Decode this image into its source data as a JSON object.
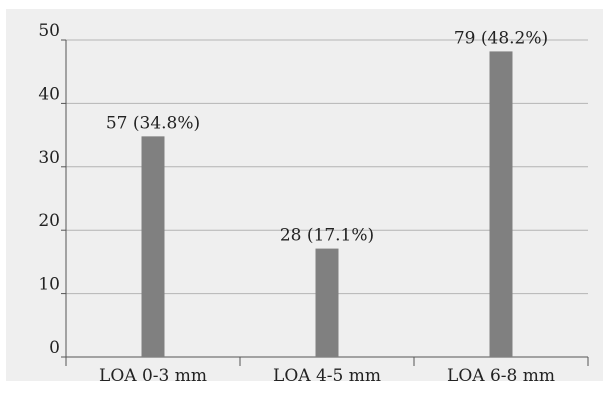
{
  "chart_data": {
    "type": "bar",
    "categories": [
      "LOA 0-3 mm",
      "LOA 4-5 mm",
      "LOA 6-8 mm"
    ],
    "values": [
      34.8,
      17.1,
      48.2
    ],
    "data_labels": [
      "57 (34.8%)",
      "28 (17.1%)",
      "79 (48.2%)"
    ],
    "title": "",
    "xlabel": "",
    "ylabel": "",
    "ylim": [
      0,
      50
    ],
    "yticks": [
      0,
      10,
      20,
      30,
      40,
      50
    ],
    "ytick_labels": [
      "0",
      "10",
      "20",
      "30",
      "40",
      "50"
    ],
    "grid": true,
    "legend": "none",
    "colors": {
      "bar": "#808080",
      "grid": "#b4b4b4",
      "axis": "#555555",
      "background": "#efefef"
    }
  }
}
